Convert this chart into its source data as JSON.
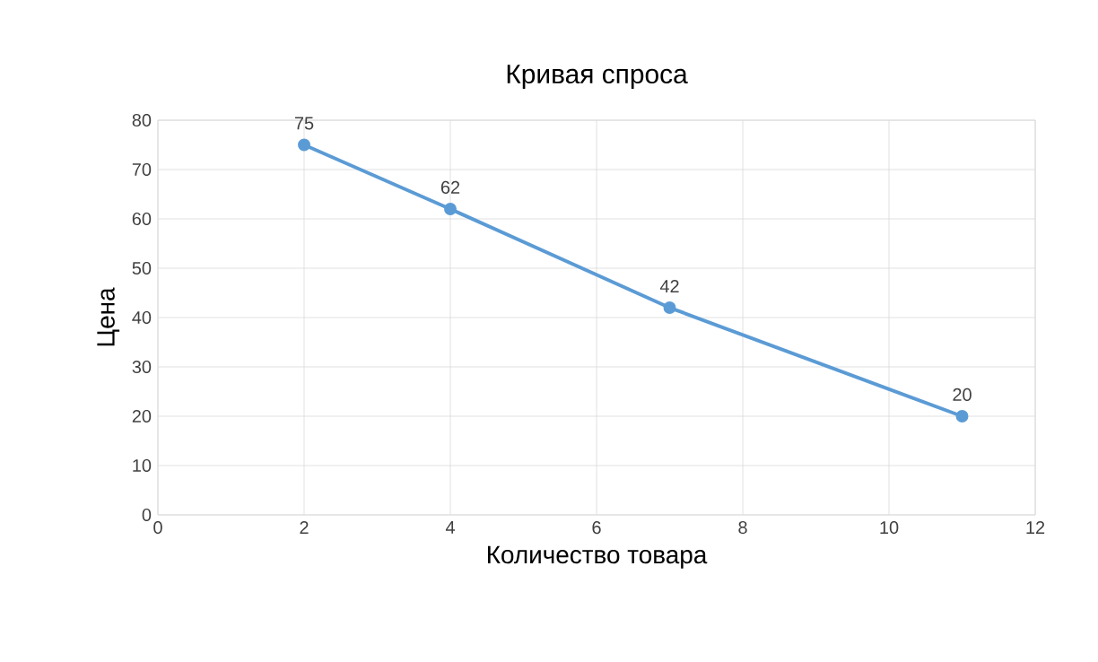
{
  "chart_data": {
    "type": "line",
    "title": "Кривая спроса",
    "xlabel": "Количество товара",
    "ylabel": "Цена",
    "x": [
      2,
      4,
      7,
      11
    ],
    "values": [
      75,
      62,
      42,
      20
    ],
    "color": "#5b9bd5",
    "marker": "circle",
    "line_style": "solid",
    "data_labels": true,
    "grid": true,
    "xlim": [
      0,
      12
    ],
    "xticks": [
      0,
      2,
      4,
      6,
      8,
      10,
      12
    ],
    "ylim": [
      0,
      80
    ],
    "yticks": [
      0,
      10,
      20,
      30,
      40,
      50,
      60,
      70,
      80
    ]
  }
}
